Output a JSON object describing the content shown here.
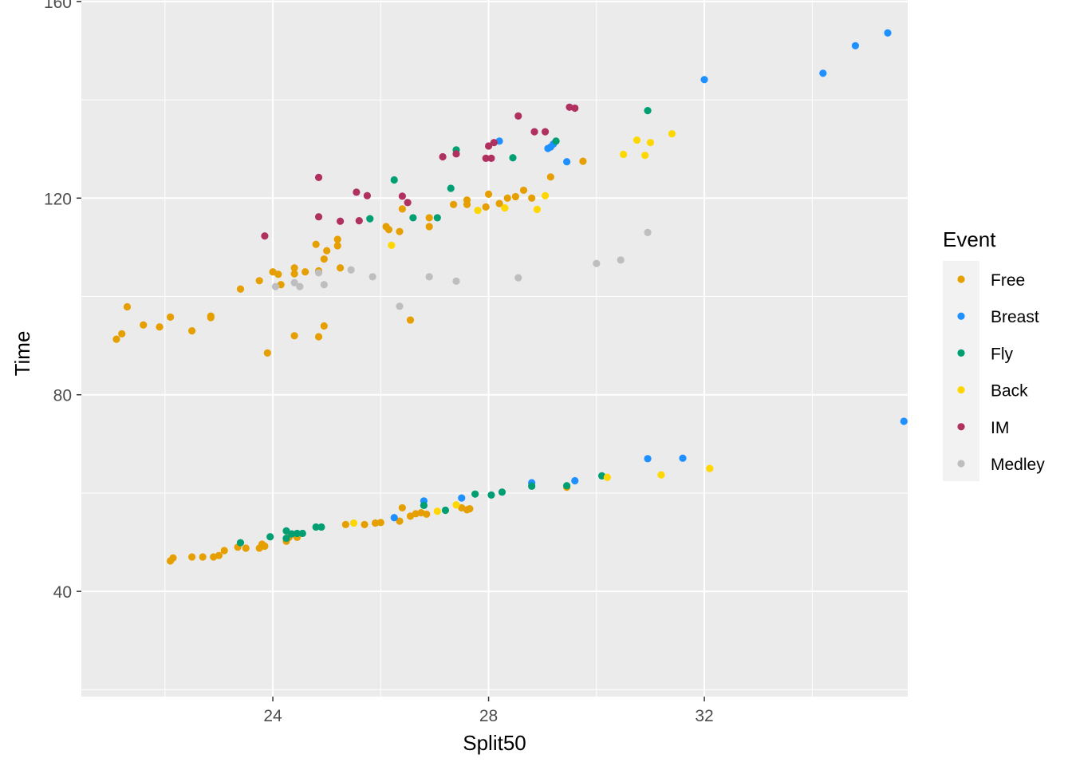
{
  "chart_data": {
    "type": "scatter",
    "xlabel": "Split50",
    "ylabel": "Time",
    "xlim": [
      20.45,
      35.77
    ],
    "ylim": [
      18.6,
      160.3
    ],
    "x_ticks": [
      24,
      28,
      32
    ],
    "y_ticks": [
      40,
      80,
      120,
      160
    ],
    "grid": true,
    "legend": {
      "title": "Event",
      "placement": "right"
    },
    "series": [
      {
        "name": "Free",
        "color": "#E69F00",
        "points": [
          [
            21.1,
            91.3
          ],
          [
            21.2,
            92.4
          ],
          [
            21.3,
            97.9
          ],
          [
            21.6,
            94.2
          ],
          [
            21.9,
            93.8
          ],
          [
            22.1,
            95.8
          ],
          [
            22.5,
            93.0
          ],
          [
            22.85,
            96.0
          ],
          [
            22.85,
            95.7
          ],
          [
            23.4,
            101.5
          ],
          [
            23.75,
            103.2
          ],
          [
            23.9,
            88.5
          ],
          [
            24.0,
            105.0
          ],
          [
            24.1,
            104.5
          ],
          [
            24.15,
            102.4
          ],
          [
            24.4,
            104.6
          ],
          [
            24.4,
            105.8
          ],
          [
            24.6,
            105.0
          ],
          [
            24.4,
            92.0
          ],
          [
            24.8,
            110.6
          ],
          [
            24.85,
            105.2
          ],
          [
            24.85,
            91.8
          ],
          [
            24.95,
            107.6
          ],
          [
            24.95,
            94.0
          ],
          [
            25.0,
            109.3
          ],
          [
            25.2,
            110.3
          ],
          [
            25.2,
            111.6
          ],
          [
            25.25,
            105.8
          ],
          [
            26.1,
            114.2
          ],
          [
            26.15,
            113.6
          ],
          [
            26.35,
            113.2
          ],
          [
            26.4,
            117.8
          ],
          [
            26.55,
            95.2
          ],
          [
            26.9,
            116.0
          ],
          [
            26.9,
            114.2
          ],
          [
            27.35,
            118.7
          ],
          [
            27.6,
            119.6
          ],
          [
            27.6,
            118.7
          ],
          [
            28.0,
            120.8
          ],
          [
            27.95,
            118.2
          ],
          [
            28.2,
            118.9
          ],
          [
            28.35,
            120.0
          ],
          [
            28.5,
            120.3
          ],
          [
            28.65,
            121.6
          ],
          [
            28.8,
            120.0
          ],
          [
            29.15,
            124.3
          ],
          [
            29.75,
            127.5
          ],
          [
            22.1,
            46.2
          ],
          [
            22.15,
            46.8
          ],
          [
            22.5,
            47.0
          ],
          [
            22.7,
            47.0
          ],
          [
            22.9,
            47.0
          ],
          [
            23.0,
            47.3
          ],
          [
            23.1,
            48.3
          ],
          [
            23.35,
            49.0
          ],
          [
            23.5,
            48.8
          ],
          [
            23.75,
            48.8
          ],
          [
            23.8,
            49.6
          ],
          [
            23.85,
            49.2
          ],
          [
            24.25,
            50.2
          ],
          [
            24.3,
            51.0
          ],
          [
            24.45,
            51.0
          ],
          [
            25.35,
            53.6
          ],
          [
            25.7,
            53.6
          ],
          [
            25.9,
            53.9
          ],
          [
            26.0,
            54.0
          ],
          [
            26.35,
            54.3
          ],
          [
            26.55,
            55.3
          ],
          [
            26.65,
            55.8
          ],
          [
            26.75,
            56.0
          ],
          [
            26.85,
            55.7
          ],
          [
            26.4,
            57.0
          ],
          [
            27.5,
            57.0
          ],
          [
            27.6,
            56.6
          ],
          [
            27.65,
            56.8
          ],
          [
            29.45,
            61.2
          ]
        ]
      },
      {
        "name": "Breast",
        "color": "#1E90FF",
        "points": [
          [
            35.4,
            153.6
          ],
          [
            34.8,
            151.0
          ],
          [
            34.2,
            145.4
          ],
          [
            32.0,
            144.1
          ],
          [
            28.2,
            131.6
          ],
          [
            29.2,
            131.0
          ],
          [
            29.15,
            130.4
          ],
          [
            29.1,
            130.1
          ],
          [
            29.45,
            127.4
          ],
          [
            26.8,
            58.4
          ],
          [
            27.5,
            59.0
          ],
          [
            26.25,
            55.0
          ],
          [
            28.8,
            62.1
          ],
          [
            29.6,
            62.5
          ],
          [
            30.95,
            67.0
          ],
          [
            31.6,
            67.1
          ],
          [
            35.7,
            74.6
          ]
        ]
      },
      {
        "name": "Fly",
        "color": "#009E73",
        "points": [
          [
            26.25,
            123.7
          ],
          [
            25.8,
            115.8
          ],
          [
            26.6,
            116.0
          ],
          [
            27.05,
            116.0
          ],
          [
            27.3,
            122.0
          ],
          [
            27.4,
            129.8
          ],
          [
            28.45,
            128.2
          ],
          [
            29.25,
            131.6
          ],
          [
            30.95,
            137.8
          ],
          [
            23.4,
            49.9
          ],
          [
            23.95,
            51.1
          ],
          [
            24.25,
            50.8
          ],
          [
            24.25,
            52.3
          ],
          [
            24.35,
            51.7
          ],
          [
            24.45,
            51.8
          ],
          [
            24.55,
            51.8
          ],
          [
            24.8,
            53.1
          ],
          [
            24.9,
            53.1
          ],
          [
            26.8,
            57.5
          ],
          [
            27.2,
            56.5
          ],
          [
            27.75,
            59.8
          ],
          [
            28.05,
            59.6
          ],
          [
            28.25,
            60.2
          ],
          [
            28.8,
            61.4
          ],
          [
            29.45,
            61.5
          ],
          [
            30.1,
            63.5
          ]
        ]
      },
      {
        "name": "Back",
        "color": "#FFD700",
        "points": [
          [
            26.2,
            110.4
          ],
          [
            27.8,
            117.5
          ],
          [
            28.3,
            118.0
          ],
          [
            28.9,
            117.7
          ],
          [
            29.05,
            120.5
          ],
          [
            30.5,
            128.9
          ],
          [
            30.75,
            131.8
          ],
          [
            30.9,
            128.7
          ],
          [
            31.0,
            131.3
          ],
          [
            31.4,
            133.1
          ],
          [
            25.5,
            53.9
          ],
          [
            27.05,
            56.3
          ],
          [
            27.4,
            57.6
          ],
          [
            30.2,
            63.2
          ],
          [
            31.2,
            63.7
          ],
          [
            32.1,
            65.0
          ]
        ]
      },
      {
        "name": "IM",
        "color": "#B03060",
        "points": [
          [
            23.85,
            112.3
          ],
          [
            24.85,
            124.2
          ],
          [
            24.85,
            116.2
          ],
          [
            25.25,
            115.3
          ],
          [
            25.55,
            121.2
          ],
          [
            25.6,
            115.4
          ],
          [
            25.75,
            120.5
          ],
          [
            26.4,
            120.4
          ],
          [
            26.5,
            119.1
          ],
          [
            27.15,
            128.4
          ],
          [
            27.4,
            129.0
          ],
          [
            27.95,
            128.1
          ],
          [
            28.0,
            130.6
          ],
          [
            28.05,
            128.1
          ],
          [
            28.1,
            131.3
          ],
          [
            28.55,
            136.7
          ],
          [
            28.85,
            133.5
          ],
          [
            29.05,
            133.5
          ],
          [
            29.5,
            138.5
          ],
          [
            29.6,
            138.3
          ]
        ]
      },
      {
        "name": "Medley",
        "color": "#BEBEBE",
        "points": [
          [
            24.05,
            102.0
          ],
          [
            24.4,
            102.8
          ],
          [
            24.5,
            102.0
          ],
          [
            24.85,
            104.8
          ],
          [
            24.95,
            102.4
          ],
          [
            25.45,
            105.4
          ],
          [
            25.85,
            104.0
          ],
          [
            26.35,
            98.0
          ],
          [
            26.9,
            104.0
          ],
          [
            27.4,
            103.1
          ],
          [
            28.55,
            103.8
          ],
          [
            30.0,
            106.7
          ],
          [
            30.45,
            107.4
          ],
          [
            30.95,
            113.0
          ]
        ]
      }
    ]
  }
}
